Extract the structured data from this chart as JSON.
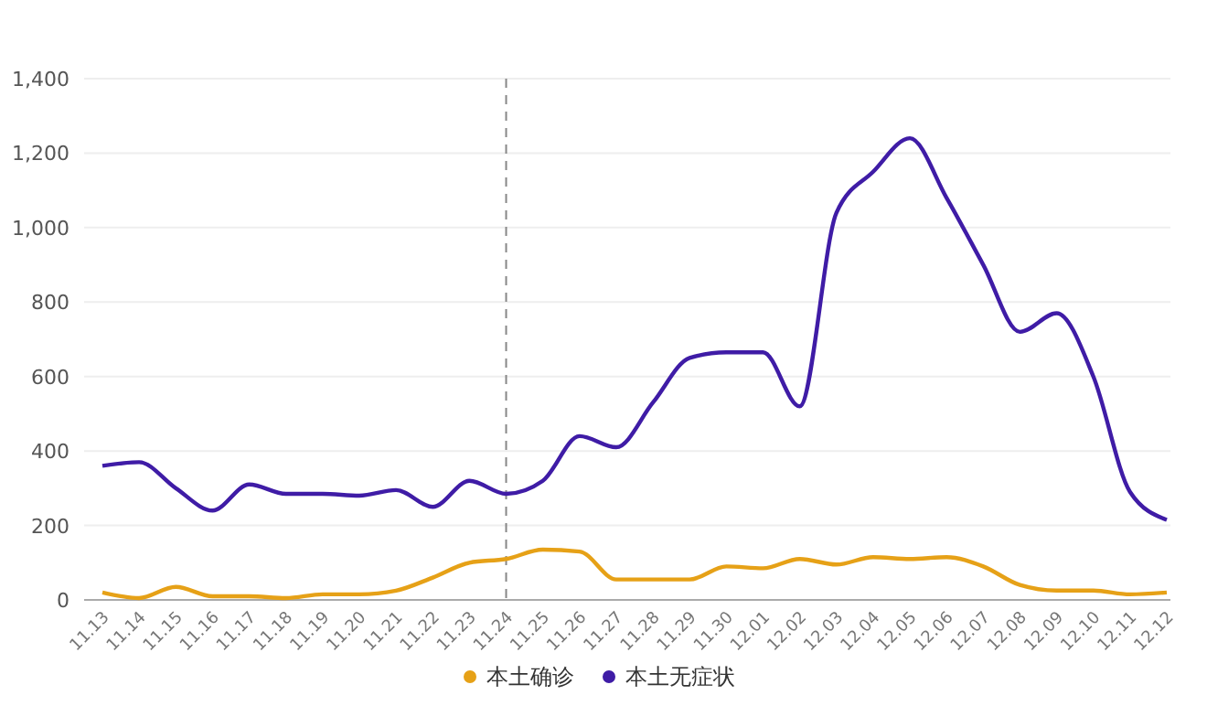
{
  "chart_data": {
    "type": "line",
    "categories": [
      "11.13",
      "11.14",
      "11.15",
      "11.16",
      "11.17",
      "11.18",
      "11.19",
      "11.20",
      "11.21",
      "11.22",
      "11.23",
      "11.24",
      "11.25",
      "11.26",
      "11.27",
      "11.28",
      "11.29",
      "11.30",
      "12.01",
      "12.02",
      "12.03",
      "12.04",
      "12.05",
      "12.06",
      "12.07",
      "12.08",
      "12.09",
      "12.10",
      "12.11",
      "12.12"
    ],
    "series": [
      {
        "name": "本土确诊",
        "color": "#e6a117",
        "values": [
          20,
          5,
          35,
          10,
          10,
          5,
          15,
          15,
          25,
          60,
          100,
          110,
          135,
          130,
          55,
          55,
          55,
          90,
          85,
          110,
          95,
          115,
          110,
          115,
          90,
          40,
          25,
          25,
          15,
          20
        ]
      },
      {
        "name": "本土无症状",
        "color": "#3f1ca6",
        "values": [
          360,
          370,
          300,
          240,
          310,
          285,
          285,
          280,
          295,
          250,
          320,
          285,
          320,
          440,
          410,
          530,
          650,
          665,
          665,
          520,
          1040,
          1150,
          1240,
          1080,
          900,
          720,
          770,
          600,
          290,
          215
        ]
      }
    ],
    "ylim": [
      0,
      1400
    ],
    "yticks": [
      0,
      {
        "value": 200,
        "label": "200"
      },
      {
        "value": 400,
        "label": "400"
      },
      {
        "value": 600,
        "label": "600"
      },
      {
        "value": 800,
        "label": "800"
      },
      {
        "value": 1000,
        "label": "1,000"
      },
      {
        "value": 1200,
        "label": "1,200"
      },
      {
        "value": 1400,
        "label": "1,400"
      }
    ],
    "grid": "y",
    "legend": "bottom",
    "marker": "none",
    "line_style": "solid",
    "ref_lines": [
      {
        "axis": "x",
        "value": "11.24",
        "label": null,
        "color": "#888888",
        "line_style": "dashed"
      }
    ]
  }
}
